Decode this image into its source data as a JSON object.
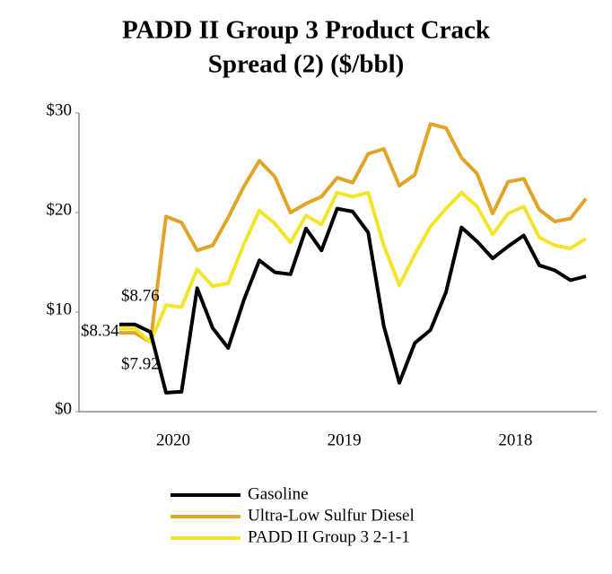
{
  "chart_data": {
    "type": "line",
    "title": [
      "PADD II Group 3 Product Crack",
      "Spread (2) ($/bbl)"
    ],
    "categories": [
      null,
      null,
      null,
      "2020",
      null,
      null,
      null,
      null,
      null,
      null,
      null,
      null,
      null,
      null,
      "2019",
      null,
      null,
      null,
      null,
      null,
      null,
      null,
      null,
      null,
      null,
      "2018",
      null,
      null,
      null,
      null,
      null
    ],
    "series": [
      {
        "name": "Gasoline",
        "color": "#000000",
        "values": [
          8.76,
          8.76,
          8.0,
          1.9,
          2.0,
          12.4,
          8.4,
          6.4,
          11.2,
          15.2,
          14.0,
          13.8,
          18.4,
          16.2,
          20.4,
          20.1,
          18.0,
          8.6,
          2.9,
          6.9,
          8.2,
          12.0,
          18.5,
          17.1,
          15.4,
          16.6,
          17.7,
          14.7,
          14.2,
          13.2,
          13.6
        ]
      },
      {
        "name": "Ultra-Low Sulfur Diesel",
        "color": "#e0a526",
        "values": [
          7.92,
          7.92,
          7.0,
          19.6,
          19.0,
          16.2,
          16.7,
          19.5,
          22.6,
          25.2,
          23.6,
          20.0,
          20.9,
          21.6,
          23.5,
          23.0,
          25.9,
          26.4,
          22.7,
          23.8,
          28.9,
          28.5,
          25.5,
          23.9,
          19.9,
          23.1,
          23.4,
          20.3,
          19.1,
          19.4,
          21.4
        ]
      },
      {
        "name": "PADD II Group 3 2-1-1",
        "color": "#f2e52a",
        "values": [
          8.34,
          8.34,
          7.0,
          10.7,
          10.5,
          14.3,
          12.6,
          12.9,
          16.8,
          20.2,
          18.9,
          17.0,
          19.7,
          18.8,
          22.0,
          21.6,
          22.0,
          16.7,
          12.7,
          15.8,
          18.6,
          20.4,
          22.0,
          20.6,
          17.8,
          19.9,
          20.6,
          17.5,
          16.7,
          16.4,
          17.4
        ]
      }
    ],
    "annotations": [
      "$8.76",
      "$8.34",
      "$7.92"
    ],
    "ylim": [
      0,
      30
    ],
    "yticks": [
      {
        "value": 0,
        "label": "$0"
      },
      {
        "value": 10,
        "label": "$10"
      },
      {
        "value": 20,
        "label": "$20"
      },
      {
        "value": 30,
        "label": "$30"
      }
    ],
    "legend": "bottom"
  }
}
